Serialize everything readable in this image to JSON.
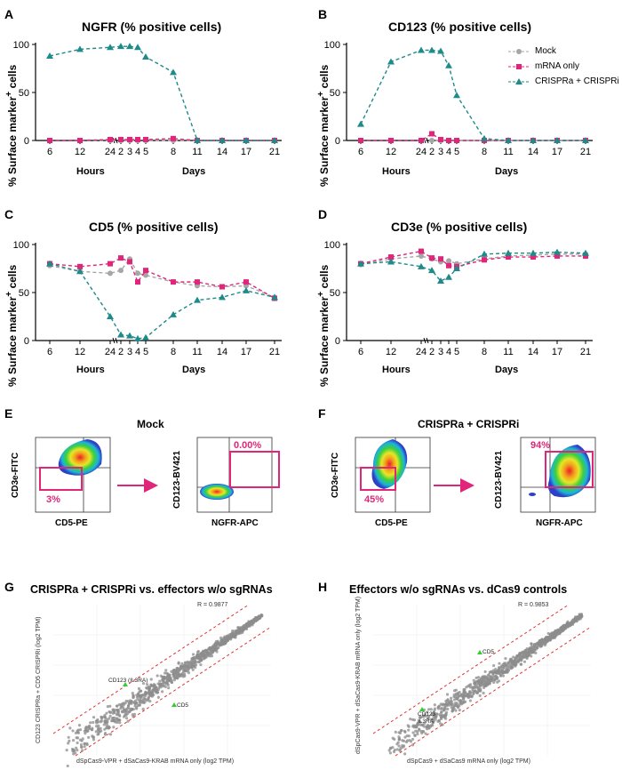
{
  "panels": {
    "A": {
      "letter": "A",
      "title": "NGFR (% positive cells)"
    },
    "B": {
      "letter": "B",
      "title": "CD123 (% positive cells)"
    },
    "C": {
      "letter": "C",
      "title": "CD5 (% positive cells)"
    },
    "D": {
      "letter": "D",
      "title": "CD3e (% positive cells)"
    },
    "E": {
      "letter": "E",
      "title": "Mock"
    },
    "F": {
      "letter": "F",
      "title": "CRISPRa + CRISPRi"
    },
    "G": {
      "letter": "G",
      "title": "CRISPRa + CRISPRi vs. effectors w/o sgRNAs"
    },
    "H": {
      "letter": "H",
      "title": "Effectors w/o sgRNAs vs. dCas9 controls"
    }
  },
  "axis_text": {
    "ylabel_main": "% Surface marker",
    "ylabel_sup": "+",
    "ylabel_tail": " cells",
    "hours": "Hours",
    "days": "Days",
    "ytick_0": "0",
    "ytick_50": "50",
    "ytick_100": "100"
  },
  "legend": {
    "mock": "Mock",
    "mrna": "mRNA only",
    "crispr": "CRISPRa + CRISPRi"
  },
  "colors": {
    "mock": "#a6a6a6",
    "mrna": "#e0267a",
    "crispr": "#1f8a8a",
    "gate": "#e0267a",
    "scatter_point": "#8c8c8c",
    "highlight": "#33cc33",
    "diag": "#e03030"
  },
  "flow": {
    "E_left": {
      "y": "CD3e-FITC",
      "x": "CD5-PE",
      "pct": "3%"
    },
    "E_right": {
      "y": "CD123-BV421",
      "x": "NGFR-APC",
      "pct": "0.00%"
    },
    "F_left": {
      "y": "CD3e-FITC",
      "x": "CD5-PE",
      "pct": "45%"
    },
    "F_right": {
      "y": "CD123-BV421",
      "x": "NGFR-APC",
      "pct": "94%"
    }
  },
  "scatter": {
    "G": {
      "r": "R = 0.9877",
      "xlabel": "dSpCas9-VPR + dSaCas9-KRAB mRNA only (log2 TPM)",
      "ylabel": "CD123 CRISPRa + CD5 CRISPRi (log2 TPM)",
      "gene1": "CD123 (IL3RA)",
      "gene2": "CD5"
    },
    "H": {
      "r": "R = 0.9853",
      "xlabel": "dSpCas9 + dSaCas9 mRNA only (log2 TPM)",
      "ylabel": "dSpCas9-VPR + dSaCas9-KRAB mRNA only (log2 TPM)",
      "gene1": "CD5",
      "gene2a": "CD123",
      "gene2b": "IL3RA"
    }
  },
  "chart_data": [
    {
      "type": "line",
      "title": "NGFR (% positive cells)",
      "x_tick_labels": [
        "6",
        "12",
        "24",
        "2",
        "3",
        "4",
        "5",
        "8",
        "11",
        "14",
        "17",
        "21"
      ],
      "ylim": [
        0,
        100
      ],
      "grid": false,
      "legend": "top-right",
      "series": [
        {
          "name": "Mock",
          "values": [
            0,
            0,
            0,
            0,
            0,
            0,
            0,
            0,
            0,
            0,
            0,
            0
          ]
        },
        {
          "name": "mRNA only",
          "values": [
            0,
            0,
            1,
            1,
            1,
            1,
            1,
            2,
            0,
            0,
            0,
            0
          ]
        },
        {
          "name": "CRISPRa + CRISPRi",
          "values": [
            88,
            95,
            97,
            98,
            98,
            97,
            87,
            71,
            0,
            0,
            0,
            0
          ]
        }
      ]
    },
    {
      "type": "line",
      "title": "CD123 (% positive cells)",
      "x_tick_labels": [
        "6",
        "12",
        "24",
        "2",
        "3",
        "4",
        "5",
        "8",
        "11",
        "14",
        "17",
        "21"
      ],
      "ylim": [
        0,
        100
      ],
      "grid": false,
      "series": [
        {
          "name": "Mock",
          "values": [
            0,
            0,
            0,
            0,
            0,
            0,
            0,
            0,
            0,
            0,
            0,
            0
          ]
        },
        {
          "name": "mRNA only",
          "values": [
            0,
            0,
            0,
            7,
            1,
            0,
            0,
            0,
            0,
            0,
            0,
            0
          ]
        },
        {
          "name": "CRISPRa + CRISPRi",
          "values": [
            17,
            82,
            94,
            94,
            93,
            78,
            47,
            2,
            0,
            0,
            0,
            0
          ]
        }
      ]
    },
    {
      "type": "line",
      "title": "CD5 (% positive cells)",
      "x_tick_labels": [
        "6",
        "12",
        "24",
        "2",
        "3",
        "4",
        "5",
        "8",
        "11",
        "14",
        "17",
        "21"
      ],
      "ylim": [
        0,
        100
      ],
      "grid": false,
      "series": [
        {
          "name": "Mock",
          "values": [
            78,
            72,
            70,
            73,
            85,
            70,
            68,
            61,
            57,
            56,
            57,
            45
          ]
        },
        {
          "name": "mRNA only",
          "values": [
            80,
            77,
            80,
            86,
            82,
            61,
            73,
            61,
            61,
            56,
            61,
            44
          ]
        },
        {
          "name": "CRISPRa + CRISPRi",
          "values": [
            80,
            72,
            25,
            6,
            5,
            2,
            3,
            27,
            42,
            45,
            52,
            45
          ]
        }
      ]
    },
    {
      "type": "line",
      "title": "CD3e (% positive cells)",
      "x_tick_labels": [
        "6",
        "12",
        "24",
        "2",
        "3",
        "4",
        "5",
        "8",
        "11",
        "14",
        "17",
        "21"
      ],
      "ylim": [
        0,
        100
      ],
      "grid": false,
      "series": [
        {
          "name": "Mock",
          "values": [
            79,
            85,
            88,
            85,
            82,
            83,
            80,
            85,
            88,
            89,
            90,
            90
          ]
        },
        {
          "name": "mRNA only",
          "values": [
            80,
            87,
            93,
            86,
            85,
            78,
            77,
            84,
            87,
            87,
            88,
            88
          ]
        },
        {
          "name": "CRISPRa + CRISPRi",
          "values": [
            80,
            82,
            77,
            73,
            62,
            66,
            75,
            90,
            91,
            91,
            92,
            91
          ]
        }
      ]
    }
  ]
}
